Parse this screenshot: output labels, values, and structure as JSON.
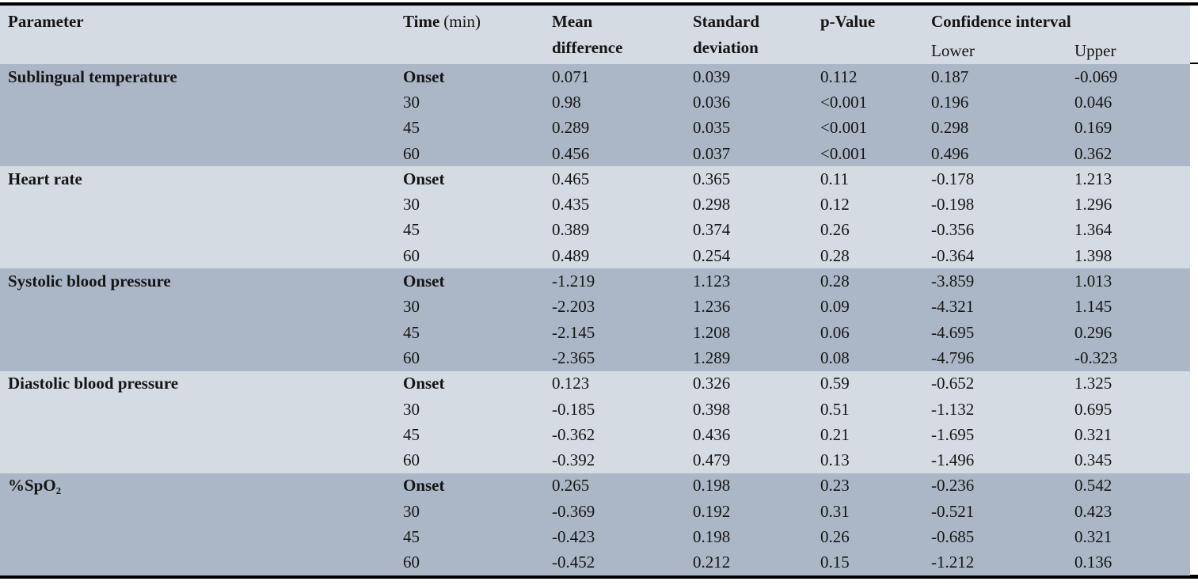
{
  "colors": {
    "band_dark": "#abb7c7",
    "band_light": "#d5dbe2",
    "header_bg": "#d5dbe2",
    "rule": "#000000",
    "text": "#151515",
    "page_bg": "#ffffff"
  },
  "header": {
    "parameter": "Parameter",
    "time": "Time",
    "time_unit": "(min)",
    "mean_difference": "Mean difference",
    "standard_deviation": "Standard deviation",
    "p_value": "p-Value",
    "confidence_interval": "Confidence interval",
    "lower": "Lower",
    "upper": "Upper"
  },
  "chart_data": {
    "type": "table",
    "title": "",
    "columns": [
      "Parameter",
      "Time (min)",
      "Mean difference",
      "Standard deviation",
      "p-Value",
      "Confidence interval Lower",
      "Confidence interval Upper"
    ],
    "rows": [
      [
        "Sublingual temperature",
        "Onset",
        "0.071",
        "0.039",
        "0.112",
        "0.187",
        "-0.069"
      ],
      [
        "",
        "30",
        "0.98",
        "0.036",
        "<0.001",
        "0.196",
        "0.046"
      ],
      [
        "",
        "45",
        "0.289",
        "0.035",
        "<0.001",
        "0.298",
        "0.169"
      ],
      [
        "",
        "60",
        "0.456",
        "0.037",
        "<0.001",
        "0.496",
        "0.362"
      ],
      [
        "Heart rate",
        "Onset",
        "0.465",
        "0.365",
        "0.11",
        "-0.178",
        "1.213"
      ],
      [
        "",
        "30",
        "0.435",
        "0.298",
        "0.12",
        "-0.198",
        "1.296"
      ],
      [
        "",
        "45",
        "0.389",
        "0.374",
        "0.26",
        "-0.356",
        "1.364"
      ],
      [
        "",
        "60",
        "0.489",
        "0.254",
        "0.28",
        "-0.364",
        "1.398"
      ],
      [
        "Systolic blood pressure",
        "Onset",
        "-1.219",
        "1.123",
        "0.28",
        "-3.859",
        "1.013"
      ],
      [
        "",
        "30",
        "-2.203",
        "1.236",
        "0.09",
        "-4.321",
        "1.145"
      ],
      [
        "",
        "45",
        "-2.145",
        "1.208",
        "0.06",
        "-4.695",
        "0.296"
      ],
      [
        "",
        "60",
        "-2.365",
        "1.289",
        "0.08",
        "-4.796",
        "-0.323"
      ],
      [
        "Diastolic blood pressure",
        "Onset",
        "0.123",
        "0.326",
        "0.59",
        "-0.652",
        "1.325"
      ],
      [
        "",
        "30",
        "-0.185",
        "0.398",
        "0.51",
        "-1.132",
        "0.695"
      ],
      [
        "",
        "45",
        "-0.362",
        "0.436",
        "0.21",
        "-1.695",
        "0.321"
      ],
      [
        "",
        "60",
        "-0.392",
        "0.479",
        "0.13",
        "-1.496",
        "0.345"
      ],
      [
        "%SpO₂",
        "Onset",
        "0.265",
        "0.198",
        "0.23",
        "-0.236",
        "0.542"
      ],
      [
        "",
        "30",
        "-0.369",
        "0.192",
        "0.31",
        "-0.521",
        "0.423"
      ],
      [
        "",
        "45",
        "-0.423",
        "0.198",
        "0.26",
        "-0.685",
        "0.321"
      ],
      [
        "",
        "60",
        "-0.452",
        "0.212",
        "0.15",
        "-1.212",
        "0.136"
      ]
    ]
  }
}
